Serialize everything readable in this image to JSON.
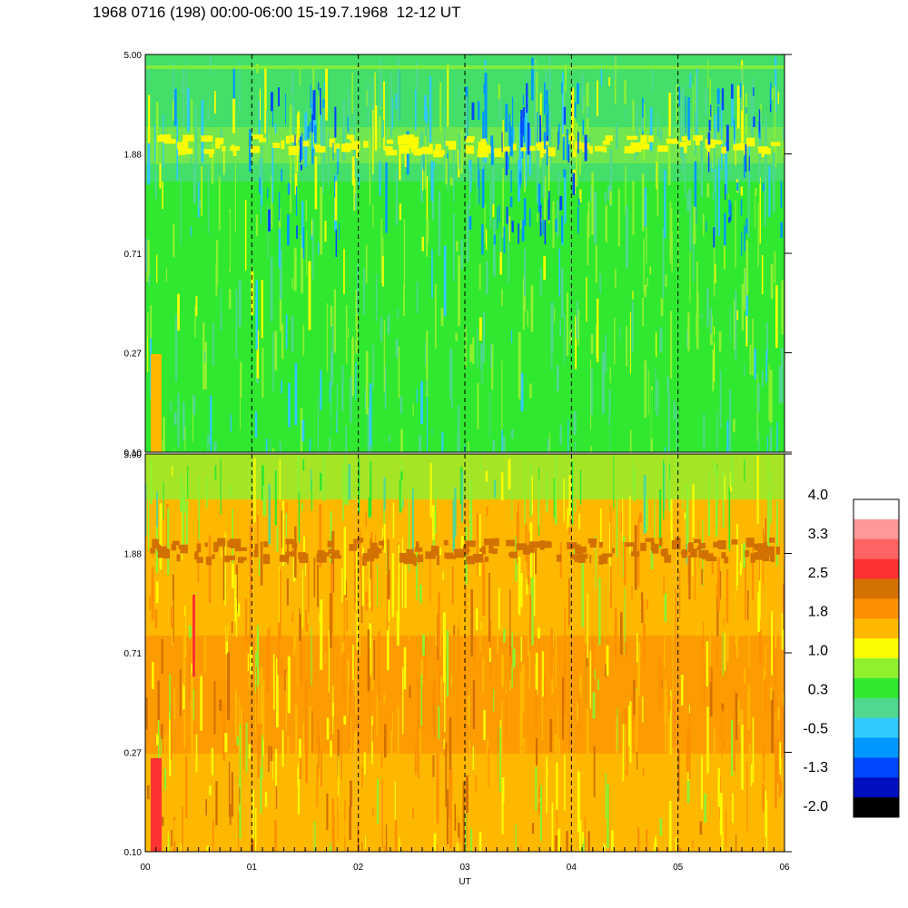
{
  "title": "1968 0716 (198) 00:00-06:00 15-19.7.1968  12-12 UT",
  "chart_data": {
    "type": "heatmap",
    "panels": [
      {
        "name": "upper",
        "y_ticks": [
          "5.00",
          "1.88",
          "0.71",
          "0.27",
          "0.10"
        ],
        "dominant_colors": [
          "#30e830",
          "#50d890",
          "#90f030",
          "#fcfc00",
          "#30c8ff"
        ]
      },
      {
        "name": "lower",
        "y_ticks": [
          "5.00",
          "1.88",
          "0.71",
          "0.27",
          "0.10"
        ],
        "dominant_colors": [
          "#ffb800",
          "#fc9000",
          "#fcfc00",
          "#d27000",
          "#90f030"
        ]
      }
    ],
    "x_ticks": [
      "00",
      "01",
      "02",
      "03",
      "04",
      "05",
      "06"
    ],
    "xlabel": "UT",
    "xlim": [
      0,
      6
    ],
    "dashed_hours": [
      1,
      2,
      3,
      4,
      5
    ],
    "colorbar": {
      "labels": [
        "4.0",
        "3.3",
        "2.5",
        "1.8",
        "1.0",
        "0.3",
        "-0.5",
        "-1.3",
        "-2.0"
      ],
      "colors": [
        "#ffffff",
        "#ff9898",
        "#ff6464",
        "#ff3232",
        "#d27000",
        "#fc9000",
        "#ffb800",
        "#fcfc00",
        "#90f030",
        "#30e830",
        "#50d890",
        "#30c8ff",
        "#0098ff",
        "#0048ff",
        "#0010c0",
        "#000000"
      ]
    }
  }
}
